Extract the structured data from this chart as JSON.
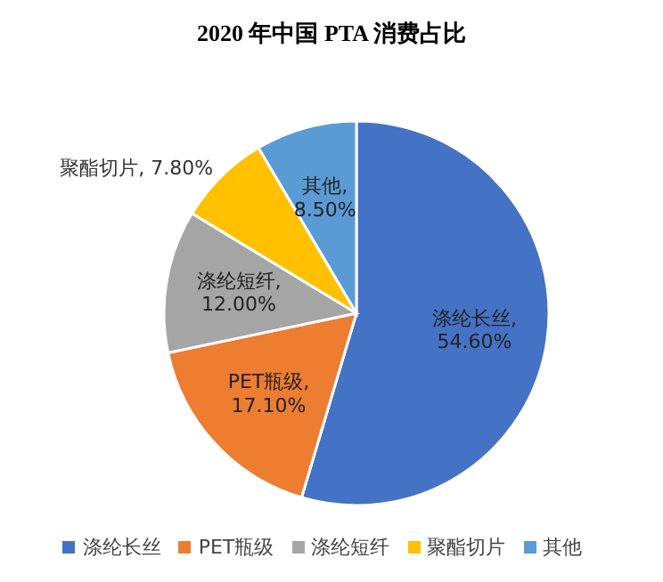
{
  "chart_data": {
    "type": "pie",
    "title": "2020 年中国 PTA 消费占比",
    "categories": [
      "涤纶长丝",
      "PET瓶级",
      "涤纶短纤",
      "聚酯切片",
      "其他"
    ],
    "values": [
      54.6,
      17.1,
      12.0,
      7.8,
      8.5
    ],
    "colors": [
      "#4472c4",
      "#ed7d31",
      "#a5a5a5",
      "#ffc000",
      "#5b9bd5"
    ],
    "value_labels": [
      "涤纶长丝,54.60%",
      "PET瓶级,17.10%",
      "涤纶短纤,12.00%",
      "聚酯切片, 7.80%",
      "其他,8.50%"
    ],
    "legend": "bottom"
  }
}
